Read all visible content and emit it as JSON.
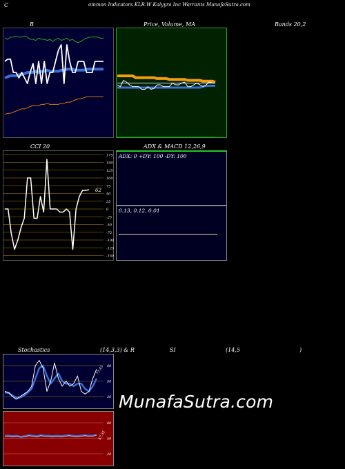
{
  "header": {
    "c_letter": "C",
    "title": "ommon  Indicators KLR.W Kalyyra  Inc Warrants MunafaSutra.com"
  },
  "labels": {
    "b": "B",
    "price": "Price,  Volume,  MA",
    "bands": "Bands 20,2",
    "cci": "CCI 20",
    "adx_macd": "ADX  & MACD 12,26,9",
    "stoch_a": "Stochastics",
    "stoch_b": "(14,3,3) & R",
    "rsi_a": "SI",
    "rsi_b": "(14,5",
    "rsi_c": ")"
  },
  "watermark": "MunafaSutra.com",
  "colors": {
    "navy": "#000033",
    "green_panel": "#002200",
    "red_panel": "#880000",
    "white": "#ffffff",
    "blue": "#3a6fd6",
    "orange": "#d97706",
    "green_line": "#22aa22",
    "cci_grid": "#b8860b",
    "stoch_grid": "#b8860b"
  },
  "chart_data": [
    {
      "type": "line",
      "panel": "bollinger",
      "x": [
        0,
        1,
        2,
        3,
        4,
        5,
        6,
        7,
        8,
        9,
        10,
        11,
        12,
        13,
        14,
        15,
        16,
        17,
        18,
        19,
        20,
        21,
        22,
        23,
        24,
        25,
        26,
        27,
        28,
        29,
        30,
        31,
        32,
        33,
        34,
        35
      ],
      "series": [
        {
          "role": "upper",
          "values": [
            91,
            90,
            92,
            92,
            93,
            92,
            92,
            93,
            92,
            90,
            90,
            89,
            91,
            90,
            90,
            89,
            90,
            88,
            90,
            91,
            89,
            90,
            91,
            89,
            90,
            88,
            87,
            88,
            90,
            91,
            92,
            92,
            92,
            92,
            91,
            91
          ]
        },
        {
          "role": "middle",
          "values": [
            55,
            56,
            57,
            57,
            57,
            58,
            58,
            59,
            60,
            60,
            60,
            61,
            60,
            61,
            61,
            62,
            61,
            61,
            61,
            61,
            62,
            62,
            63,
            63,
            63,
            62,
            62,
            62,
            62,
            63,
            63,
            63,
            63,
            63,
            63,
            63
          ]
        },
        {
          "role": "lower",
          "values": [
            22,
            23,
            23,
            24,
            25,
            26,
            27,
            27,
            28,
            29,
            30,
            30,
            30,
            31,
            31,
            32,
            31,
            31,
            31,
            31,
            32,
            32,
            33,
            33,
            34,
            35,
            36,
            36,
            37,
            38,
            38,
            38,
            38,
            38,
            38,
            38
          ]
        },
        {
          "role": "price",
          "values": [
            70,
            72,
            72,
            60,
            60,
            55,
            60,
            55,
            50,
            60,
            68,
            50,
            70,
            50,
            70,
            50,
            60,
            60,
            70,
            80,
            85,
            50,
            85,
            70,
            60,
            60,
            70,
            70,
            70,
            60,
            60,
            60,
            70,
            70,
            70,
            70
          ]
        }
      ]
    },
    {
      "type": "line",
      "panel": "price",
      "series": [
        {
          "role": "ma-orange",
          "values": [
            70,
            70,
            70,
            70,
            70,
            70,
            68,
            68,
            68,
            68,
            68,
            68,
            68,
            67,
            67,
            67,
            67,
            66,
            66,
            66,
            66,
            66,
            66,
            65,
            65,
            65,
            65,
            65,
            64,
            64,
            64,
            64,
            63
          ]
        },
        {
          "role": "ma-blue",
          "values": [
            60,
            60,
            60,
            60,
            60,
            60,
            60,
            60,
            60,
            60,
            60,
            60,
            60,
            60,
            60,
            60,
            60,
            60,
            60,
            60,
            60,
            60,
            60,
            60,
            60,
            60,
            60,
            60,
            61,
            62,
            62,
            62,
            62
          ]
        },
        {
          "role": "ma-white-flat",
          "values": [
            62,
            62,
            62,
            62,
            62,
            62,
            62,
            62,
            62,
            62,
            62,
            62,
            62,
            62,
            62,
            62,
            62,
            62,
            62,
            62,
            62,
            62,
            62,
            62,
            62,
            62,
            62,
            62,
            62,
            62,
            62,
            62,
            62
          ]
        },
        {
          "role": "price",
          "values": [
            60,
            58,
            65,
            63,
            60,
            58,
            58,
            58,
            55,
            55,
            58,
            55,
            56,
            60,
            60,
            58,
            58,
            58,
            62,
            60,
            60,
            62,
            63,
            58,
            58,
            60,
            62,
            60,
            58,
            60,
            63,
            62,
            62
          ]
        }
      ]
    },
    {
      "type": "line",
      "panel": "cci",
      "ticks": [
        175,
        150,
        125,
        100,
        75,
        50,
        25,
        0,
        -25,
        -50,
        -75,
        -100,
        -125,
        -150,
        -175
      ],
      "last_label": "62",
      "values": [
        0,
        0,
        -80,
        -130,
        -100,
        -60,
        -30,
        100,
        100,
        -30,
        -30,
        40,
        -10,
        160,
        0,
        0,
        0,
        -10,
        -10,
        0,
        -10,
        -130,
        0,
        40,
        60,
        60,
        62
      ]
    },
    {
      "type": "table",
      "panel": "adx",
      "adx_text": "ADX: 0  +DY: 100  -DY: 100",
      "macd_text": "0.13,  0.12,  0.01"
    },
    {
      "type": "line",
      "panel": "stochastics",
      "ticks": [
        80,
        50,
        20
      ],
      "last_label": "73.43",
      "series": [
        {
          "role": "k",
          "values": [
            30,
            28,
            20,
            15,
            20,
            25,
            30,
            40,
            80,
            90,
            75,
            30,
            50,
            85,
            55,
            40,
            50,
            40,
            45,
            60,
            30,
            25,
            30,
            55,
            73
          ]
        },
        {
          "role": "d",
          "values": [
            28,
            27,
            22,
            18,
            18,
            22,
            28,
            35,
            55,
            75,
            80,
            60,
            45,
            55,
            65,
            50,
            45,
            45,
            40,
            45,
            45,
            35,
            30,
            40,
            55
          ]
        }
      ]
    },
    {
      "type": "line",
      "panel": "rsi",
      "ticks": [
        80,
        50,
        20
      ],
      "last_label": "57.35",
      "series": [
        {
          "role": "rsi",
          "values": [
            55,
            55,
            54,
            55,
            53,
            54,
            56,
            55,
            54,
            56,
            55,
            55,
            54,
            55,
            54,
            55,
            56,
            55,
            54,
            55,
            56,
            55,
            55,
            57
          ]
        }
      ]
    }
  ]
}
